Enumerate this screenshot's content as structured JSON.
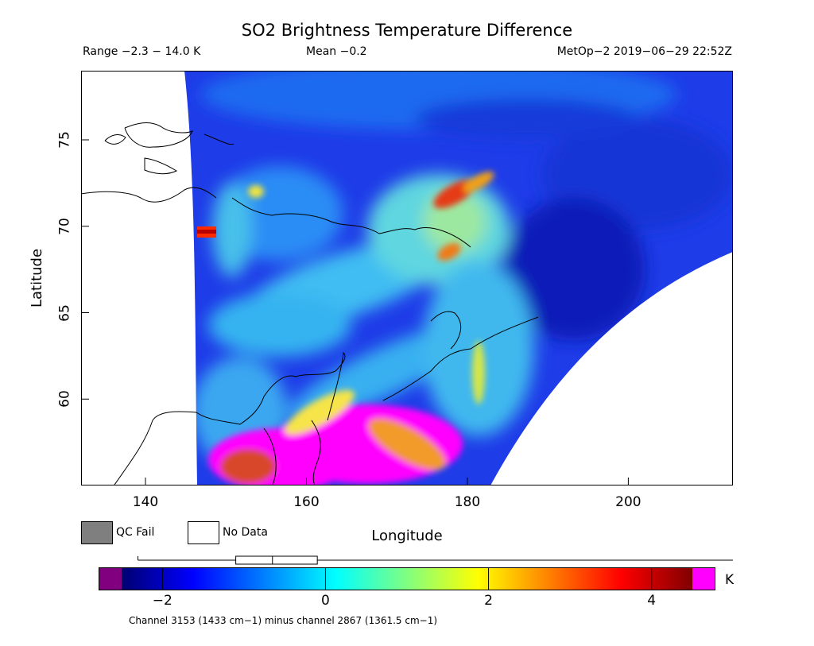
{
  "title": "SO2 Brightness Temperature Difference",
  "header": {
    "range": "Range −2.3 − 14.0 K",
    "mean": "Mean −0.2",
    "satellite": "MetOp−2 2019−06−29 22:52Z"
  },
  "map": {
    "x_axis": {
      "label": "Longitude",
      "range": [
        132,
        213
      ],
      "ticks": [
        140,
        160,
        180,
        200
      ]
    },
    "y_axis": {
      "label": "Latitude",
      "range": [
        55,
        79
      ],
      "ticks": [
        60,
        65,
        70,
        75
      ]
    },
    "no_data_color": "#ffffff"
  },
  "legend": {
    "qc_fail": {
      "label": "QC Fail",
      "color": "#7f7f7f"
    },
    "no_data": {
      "label": "No Data",
      "color": "#ffffff"
    }
  },
  "colorbar": {
    "unit": "K",
    "range": [
      -2.5,
      4.5
    ],
    "ticks": [
      -2,
      0,
      2,
      4
    ],
    "tick_labels": [
      "−2",
      "0",
      "2",
      "4"
    ],
    "underflow_color": "#800080",
    "overflow_color": "#ff00ff",
    "stops": [
      "#000070",
      "#0000ff",
      "#0080ff",
      "#00ffff",
      "#80ff80",
      "#ffff00",
      "#ff8000",
      "#ff0000",
      "#800000"
    ],
    "caption": "Channel 3153 (1433 cm−1) minus channel 2867 (1361.5 cm−1)"
  },
  "summary_whisker": {
    "min": -2.3,
    "q1": -1.1,
    "median": -0.65,
    "q3": -0.1,
    "max": 14.0
  }
}
